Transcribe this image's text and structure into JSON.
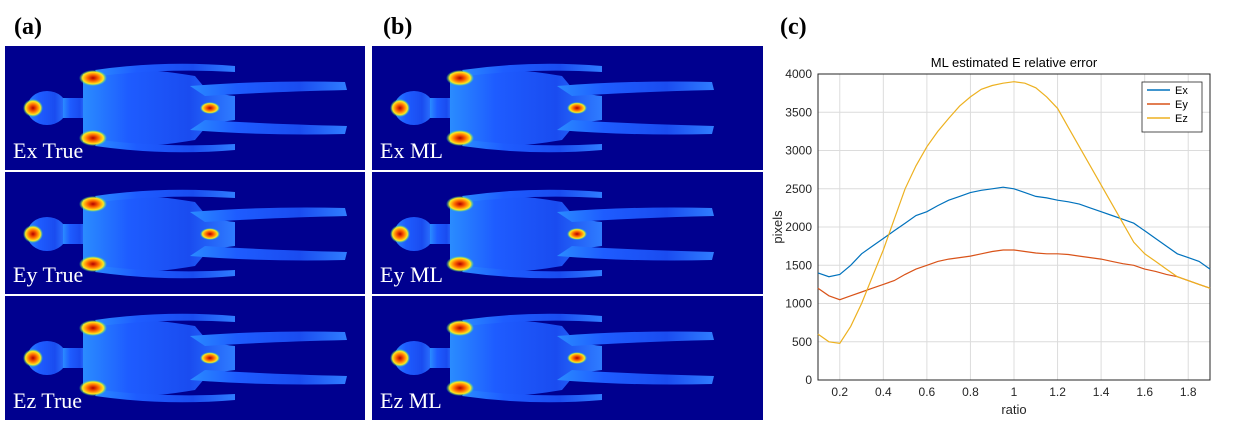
{
  "panels": {
    "a": {
      "label": "(a)"
    },
    "b": {
      "label": "(b)"
    },
    "c": {
      "label": "(c)"
    }
  },
  "maps": [
    {
      "label": "Ex True",
      "component": "x"
    },
    {
      "label": "Ey True",
      "component": "y"
    },
    {
      "label": "Ez True",
      "component": "z"
    },
    {
      "label": "Ex ML",
      "component": "x"
    },
    {
      "label": "Ey ML",
      "component": "y"
    },
    {
      "label": "Ez ML",
      "component": "z"
    }
  ],
  "colors": {
    "map_background": "#00008f",
    "body_fill": "#1e5cff",
    "hot": "#ffd21e",
    "very_hot": "#b30000"
  },
  "chart_data": {
    "type": "line",
    "title": "ML estimated E relative error",
    "xlabel": "ratio",
    "ylabel": "pixels",
    "xlim": [
      0.1,
      1.9
    ],
    "ylim": [
      0,
      4000
    ],
    "xticks": [
      "0.2",
      "0.4",
      "0.6",
      "0.8",
      "1",
      "1.2",
      "1.4",
      "1.6",
      "1.8"
    ],
    "yticks": [
      "0",
      "500",
      "1000",
      "1500",
      "2000",
      "2500",
      "3000",
      "3500",
      "4000"
    ],
    "grid": true,
    "legend_position": "top-right",
    "x": [
      0.1,
      0.15,
      0.2,
      0.25,
      0.3,
      0.35,
      0.4,
      0.45,
      0.5,
      0.55,
      0.6,
      0.65,
      0.7,
      0.75,
      0.8,
      0.85,
      0.9,
      0.95,
      1.0,
      1.05,
      1.1,
      1.15,
      1.2,
      1.25,
      1.3,
      1.35,
      1.4,
      1.45,
      1.5,
      1.55,
      1.6,
      1.65,
      1.7,
      1.75,
      1.8,
      1.85,
      1.9
    ],
    "series": [
      {
        "name": "Ex",
        "color": "#0072bd",
        "values": [
          1400,
          1350,
          1380,
          1500,
          1650,
          1750,
          1850,
          1950,
          2050,
          2150,
          2200,
          2280,
          2350,
          2400,
          2450,
          2480,
          2500,
          2520,
          2500,
          2450,
          2400,
          2380,
          2350,
          2330,
          2300,
          2250,
          2200,
          2150,
          2100,
          2050,
          1950,
          1850,
          1750,
          1650,
          1600,
          1550,
          1450
        ]
      },
      {
        "name": "Ey",
        "color": "#d95319",
        "values": [
          1200,
          1100,
          1050,
          1100,
          1150,
          1200,
          1250,
          1300,
          1380,
          1450,
          1500,
          1550,
          1580,
          1600,
          1620,
          1650,
          1680,
          1700,
          1700,
          1680,
          1660,
          1650,
          1650,
          1640,
          1620,
          1600,
          1580,
          1550,
          1520,
          1500,
          1450,
          1420,
          1380,
          1350,
          1300,
          1250,
          1200
        ]
      },
      {
        "name": "Ez",
        "color": "#edb120",
        "values": [
          600,
          500,
          480,
          700,
          1000,
          1350,
          1700,
          2100,
          2500,
          2800,
          3050,
          3250,
          3420,
          3580,
          3700,
          3800,
          3850,
          3880,
          3900,
          3880,
          3820,
          3700,
          3550,
          3300,
          3050,
          2800,
          2550,
          2300,
          2050,
          1800,
          1650,
          1550,
          1450,
          1350,
          1300,
          1250,
          1200
        ]
      }
    ]
  }
}
